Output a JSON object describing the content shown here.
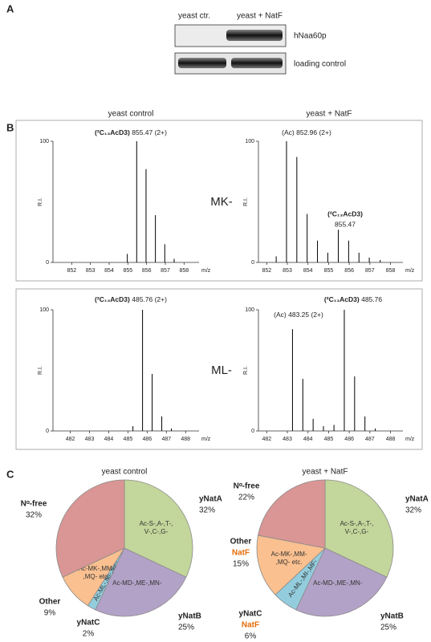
{
  "panel_labels": [
    "A",
    "B",
    "C"
  ],
  "blot": {
    "lanes": [
      "yeast ctr.",
      "yeast + NatF"
    ],
    "rows": [
      "hNaa60p",
      "loading control"
    ]
  },
  "column_titles": [
    "yeast control",
    "yeast + NatF"
  ],
  "row_labels": [
    "MK-",
    "ML-"
  ],
  "chart_data": [
    {
      "type": "stem",
      "x": [
        854.97,
        855.47,
        855.97,
        856.47,
        856.97,
        857.47
      ],
      "values": [
        7,
        100,
        77,
        39,
        15,
        3
      ],
      "xlim": [
        851.0,
        858.8
      ],
      "xticks": [
        852,
        853,
        854,
        855,
        856,
        857,
        858
      ],
      "ylim": [
        0,
        100
      ],
      "yticks": [
        0,
        100
      ],
      "ylabel": "R.I.",
      "xlabel": "m/z",
      "color": "#000000",
      "annotations": [
        {
          "label": "(²C₁₃AcD3)",
          "text": "855.47 (2+)"
        }
      ]
    },
    {
      "type": "stem",
      "x": [
        852.46,
        852.96,
        853.46,
        853.96,
        854.46,
        854.96,
        855.47,
        855.97,
        856.47,
        856.97,
        857.5
      ],
      "values": [
        5,
        100,
        87,
        40,
        18,
        8,
        27,
        18,
        8,
        4,
        2
      ],
      "xlim": [
        851.6,
        858.6
      ],
      "xticks": [
        852,
        853,
        854,
        855,
        856,
        857,
        858
      ],
      "ylim": [
        0,
        100
      ],
      "yticks": [
        0,
        100
      ],
      "ylabel": "R.I.",
      "xlabel": "m/z",
      "color": "#000000",
      "annotations": [
        {
          "text": "(Ac) 852.96 (2+)"
        },
        {
          "label": "(²C₁₃AcD3)",
          "text": "855.47"
        }
      ]
    },
    {
      "type": "stem",
      "x": [
        485.26,
        485.76,
        486.26,
        486.76,
        487.26
      ],
      "values": [
        4,
        100,
        47,
        12,
        2
      ],
      "xlim": [
        481.1,
        488.7
      ],
      "xticks": [
        482,
        483,
        484,
        485,
        486,
        487,
        488
      ],
      "ylim": [
        0,
        100
      ],
      "yticks": [
        0,
        100
      ],
      "ylabel": "R.I.",
      "xlabel": "m/z",
      "color": "#000000",
      "annotations": [
        {
          "label": "(²C₁₃AcD3)",
          "text": "485.76 (2+)"
        }
      ]
    },
    {
      "type": "stem",
      "x": [
        483.25,
        483.75,
        484.25,
        484.75,
        485.26,
        485.76,
        486.26,
        486.76,
        487.26
      ],
      "values": [
        84,
        43,
        10,
        4,
        5,
        100,
        45,
        12,
        2
      ],
      "xlim": [
        481.6,
        488.6
      ],
      "xticks": [
        482,
        483,
        484,
        485,
        486,
        487,
        488
      ],
      "ylim": [
        0,
        100
      ],
      "yticks": [
        0,
        100
      ],
      "ylabel": "R.I.",
      "xlabel": "m/z",
      "color": "#000000",
      "annotations": [
        {
          "label": "(²C₁₃AcD3)",
          "text": "485.76"
        },
        {
          "text": "(Ac) 483.25 (2+)"
        }
      ]
    },
    {
      "type": "pie",
      "title": "yeast control",
      "categories": [
        "yNatA",
        "yNatB",
        "yNatC",
        "Other",
        "Nᵅ-free"
      ],
      "values": [
        32,
        25,
        2,
        9,
        32
      ],
      "value_labels": [
        "32%",
        "25%",
        "2%",
        "9%",
        "32%"
      ],
      "colors": [
        "#c3d69b",
        "#b3a2c7",
        "#93cddd",
        "#fac090",
        "#d99694"
      ],
      "inner_labels": [
        [
          "Ac-S-,A-,T-,",
          "V-,C-,G-"
        ],
        [
          "Ac-MD-,ME-,MN-"
        ],
        [
          "Ac-ML-,MI-,MF-"
        ],
        [
          "Ac-MK-,MM-",
          ",MQ- etc."
        ],
        null
      ]
    },
    {
      "type": "pie",
      "title": "yeast + NatF",
      "categories": [
        "yNatA",
        "yNatB",
        "yNatC",
        "Other",
        "Nᵅ-free"
      ],
      "values": [
        32,
        25,
        6,
        15,
        22
      ],
      "value_labels": [
        "32%",
        "25%",
        "6%",
        "15%",
        "22%"
      ],
      "subnames": [
        null,
        null,
        "NatF",
        "NatF",
        null
      ],
      "colors": [
        "#c3d69b",
        "#b3a2c7",
        "#93cddd",
        "#fac090",
        "#d99694"
      ],
      "inner_labels": [
        [
          "Ac-S-,A-,T-,",
          "V-,C-,G-"
        ],
        [
          "Ac-MD-,ME-,MN-"
        ],
        [
          "Ac-ML-,MI-,MF-"
        ],
        [
          "Ac-MK-,MM-",
          ",MQ- etc."
        ],
        null
      ]
    }
  ]
}
